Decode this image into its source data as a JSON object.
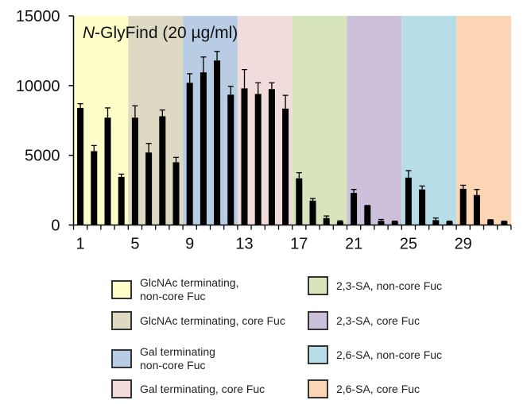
{
  "chart_data": {
    "type": "bar",
    "title_italic": "N",
    "title_rest": "-GlyFind (20 µg/ml)",
    "xlabel": "",
    "ylabel": "",
    "ylim": [
      0,
      15000
    ],
    "yticks": [
      "0",
      "5000",
      "10000",
      "15000"
    ],
    "xtick_labels": [
      "1",
      "5",
      "9",
      "13",
      "17",
      "21",
      "25",
      "29"
    ],
    "x": [
      1,
      2,
      3,
      4,
      5,
      6,
      7,
      8,
      9,
      10,
      11,
      12,
      13,
      14,
      15,
      16,
      17,
      18,
      19,
      20,
      21,
      22,
      23,
      24,
      25,
      26,
      27,
      28,
      29,
      30,
      31,
      32
    ],
    "values": [
      8400,
      5300,
      7700,
      3450,
      7700,
      5200,
      7800,
      4500,
      10200,
      10950,
      11800,
      9350,
      9800,
      9400,
      9750,
      8350,
      3350,
      1750,
      500,
      250,
      2300,
      1400,
      300,
      250,
      3400,
      2550,
      350,
      250,
      2600,
      2150,
      350,
      250
    ],
    "error_upper": [
      8700,
      5700,
      8400,
      3650,
      8550,
      5850,
      8250,
      4850,
      10850,
      12050,
      12450,
      9950,
      11150,
      10200,
      10200,
      9300,
      3750,
      1900,
      650,
      300,
      2550,
      1400,
      400,
      280,
      3900,
      2800,
      500,
      280,
      2850,
      2550,
      380,
      280
    ],
    "groups": [
      {
        "label": "GlcNAc terminating, non-core Fuc",
        "color": "#fefec8",
        "bars": [
          1,
          4
        ]
      },
      {
        "label": "GlcNAc terminating, core Fuc",
        "color": "#ddd9c3",
        "bars": [
          5,
          8
        ]
      },
      {
        "label": "Gal terminating non-core Fuc",
        "color": "#b8cce4",
        "bars": [
          9,
          12
        ]
      },
      {
        "label": "Gal terminating, core Fuc",
        "color": "#f2dcdb",
        "bars": [
          13,
          16
        ]
      },
      {
        "label": "2,3-SA, non-core Fuc",
        "color": "#d7e4bc",
        "bars": [
          17,
          20
        ]
      },
      {
        "label": "2,3-SA, core Fuc",
        "color": "#ccc0da",
        "bars": [
          21,
          24
        ]
      },
      {
        "label": "2,6-SA, non-core Fuc",
        "color": "#b7dde8",
        "bars": [
          25,
          28
        ]
      },
      {
        "label": "2,6-SA, core Fuc",
        "color": "#fcd5b4",
        "bars": [
          29,
          32
        ]
      }
    ],
    "legend": {
      "placement": "bottom",
      "items": [
        {
          "line1": "GlcNAc terminating,",
          "line2": "non-core Fuc"
        },
        {
          "line1": "GlcNAc terminating, core Fuc",
          "line2": ""
        },
        {
          "line1": "Gal terminating",
          "line2": "non-core Fuc"
        },
        {
          "line1": "Gal terminating, core Fuc",
          "line2": ""
        },
        {
          "line1": "2,3-SA, non-core Fuc",
          "line2": ""
        },
        {
          "line1": "2,3-SA, core Fuc",
          "line2": ""
        },
        {
          "line1": "2,6-SA, non-core Fuc",
          "line2": ""
        },
        {
          "line1": "2,6-SA, core Fuc",
          "line2": ""
        }
      ]
    }
  }
}
